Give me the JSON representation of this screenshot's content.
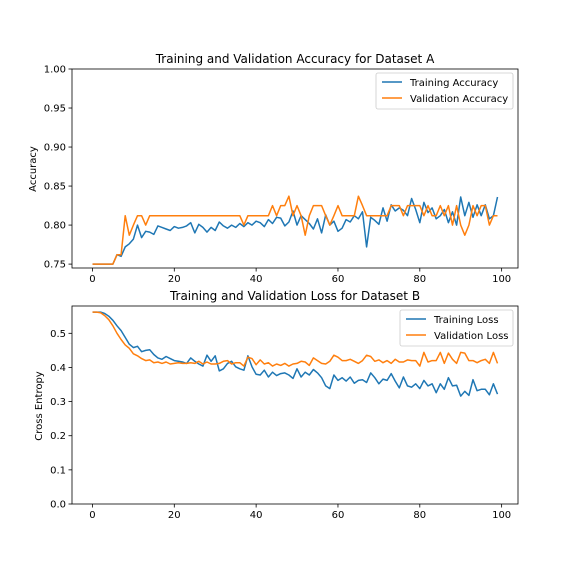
{
  "chart_data": [
    {
      "type": "line",
      "title": "Training and Validation Accuracy for Dataset A",
      "xlabel": "",
      "ylabel": "Accuracy",
      "xlim": [
        -5,
        104
      ],
      "ylim": [
        0.745,
        1.0
      ],
      "xticks": [
        0,
        20,
        40,
        60,
        80,
        100
      ],
      "xtick_labels": [
        "0",
        "20",
        "40",
        "60",
        "80",
        "100"
      ],
      "yticks": [
        0.75,
        0.8,
        0.85,
        0.9,
        0.95,
        1.0
      ],
      "ytick_labels": [
        "0.75",
        "0.80",
        "0.85",
        "0.90",
        "0.95",
        "1.00"
      ],
      "grid": false,
      "legend_position": "top-right",
      "series": [
        {
          "name": "Training Accuracy",
          "color": "#1f77b4",
          "x": [
            0,
            1,
            2,
            3,
            4,
            5,
            6,
            7,
            8,
            9,
            10,
            11,
            12,
            13,
            14,
            15,
            16,
            17,
            18,
            19,
            20,
            21,
            22,
            23,
            24,
            25,
            26,
            27,
            28,
            29,
            30,
            31,
            32,
            33,
            34,
            35,
            36,
            37,
            38,
            39,
            40,
            41,
            42,
            43,
            44,
            45,
            46,
            47,
            48,
            49,
            50,
            51,
            52,
            53,
            54,
            55,
            56,
            57,
            58,
            59,
            60,
            61,
            62,
            63,
            64,
            65,
            66,
            67,
            68,
            69,
            70,
            71,
            72,
            73,
            74,
            75,
            76,
            77,
            78,
            79,
            80,
            81,
            82,
            83,
            84,
            85,
            86,
            87,
            88,
            89,
            90,
            91,
            92,
            93,
            94,
            95,
            96,
            97,
            98,
            99
          ],
          "y": [
            0.75,
            0.75,
            0.75,
            0.75,
            0.75,
            0.75,
            0.762,
            0.76,
            0.772,
            0.776,
            0.782,
            0.8,
            0.784,
            0.792,
            0.791,
            0.788,
            0.799,
            0.797,
            0.795,
            0.793,
            0.798,
            0.796,
            0.797,
            0.799,
            0.803,
            0.79,
            0.801,
            0.797,
            0.791,
            0.797,
            0.793,
            0.804,
            0.799,
            0.796,
            0.8,
            0.797,
            0.802,
            0.798,
            0.803,
            0.8,
            0.805,
            0.803,
            0.798,
            0.807,
            0.802,
            0.81,
            0.809,
            0.799,
            0.804,
            0.818,
            0.8,
            0.812,
            0.807,
            0.802,
            0.795,
            0.808,
            0.79,
            0.813,
            0.8,
            0.805,
            0.792,
            0.796,
            0.807,
            0.804,
            0.812,
            0.808,
            0.817,
            0.772,
            0.81,
            0.806,
            0.801,
            0.822,
            0.805,
            0.826,
            0.818,
            0.822,
            0.819,
            0.812,
            0.834,
            0.82,
            0.803,
            0.829,
            0.816,
            0.822,
            0.808,
            0.812,
            0.82,
            0.803,
            0.817,
            0.8,
            0.836,
            0.812,
            0.829,
            0.81,
            0.826,
            0.812,
            0.826,
            0.808,
            0.812,
            0.836
          ]
        },
        {
          "name": "Validation Accuracy",
          "color": "#ff7f0e",
          "x": [
            0,
            1,
            2,
            3,
            4,
            5,
            6,
            7,
            8,
            9,
            10,
            11,
            12,
            13,
            14,
            15,
            16,
            17,
            18,
            19,
            20,
            21,
            22,
            23,
            24,
            25,
            26,
            27,
            28,
            29,
            30,
            31,
            32,
            33,
            34,
            35,
            36,
            37,
            38,
            39,
            40,
            41,
            42,
            43,
            44,
            45,
            46,
            47,
            48,
            49,
            50,
            51,
            52,
            53,
            54,
            55,
            56,
            57,
            58,
            59,
            60,
            61,
            62,
            63,
            64,
            65,
            66,
            67,
            68,
            69,
            70,
            71,
            72,
            73,
            74,
            75,
            76,
            77,
            78,
            79,
            80,
            81,
            82,
            83,
            84,
            85,
            86,
            87,
            88,
            89,
            90,
            91,
            92,
            93,
            94,
            95,
            96,
            97,
            98,
            99
          ],
          "y": [
            0.75,
            0.75,
            0.75,
            0.75,
            0.75,
            0.75,
            0.762,
            0.762,
            0.812,
            0.787,
            0.8,
            0.812,
            0.812,
            0.8,
            0.812,
            0.812,
            0.812,
            0.812,
            0.812,
            0.812,
            0.812,
            0.812,
            0.812,
            0.812,
            0.812,
            0.812,
            0.812,
            0.812,
            0.812,
            0.812,
            0.812,
            0.812,
            0.812,
            0.812,
            0.812,
            0.812,
            0.812,
            0.8,
            0.812,
            0.812,
            0.812,
            0.812,
            0.812,
            0.812,
            0.825,
            0.812,
            0.825,
            0.825,
            0.837,
            0.812,
            0.825,
            0.812,
            0.787,
            0.812,
            0.825,
            0.825,
            0.825,
            0.812,
            0.8,
            0.812,
            0.825,
            0.812,
            0.812,
            0.812,
            0.812,
            0.837,
            0.825,
            0.812,
            0.812,
            0.812,
            0.812,
            0.812,
            0.812,
            0.825,
            0.825,
            0.825,
            0.812,
            0.825,
            0.825,
            0.825,
            0.825,
            0.812,
            0.825,
            0.812,
            0.812,
            0.825,
            0.812,
            0.825,
            0.8,
            0.825,
            0.8,
            0.787,
            0.8,
            0.825,
            0.812,
            0.825,
            0.825,
            0.8,
            0.812,
            0.812
          ]
        }
      ]
    },
    {
      "type": "line",
      "title": "Training and Validation Loss for Dataset B",
      "xlabel": "",
      "ylabel": "Cross Entropy",
      "xlim": [
        -5,
        104
      ],
      "ylim": [
        0.0,
        0.58
      ],
      "xticks": [
        0,
        20,
        40,
        60,
        80,
        100
      ],
      "xtick_labels": [
        "0",
        "20",
        "40",
        "60",
        "80",
        "100"
      ],
      "yticks": [
        0.0,
        0.1,
        0.2,
        0.3,
        0.4,
        0.5
      ],
      "ytick_labels": [
        "0.0",
        "0.1",
        "0.2",
        "0.3",
        "0.4",
        "0.5"
      ],
      "grid": false,
      "legend_position": "top-right",
      "series": [
        {
          "name": "Training Loss",
          "color": "#1f77b4",
          "x": [
            0,
            1,
            2,
            3,
            4,
            5,
            6,
            7,
            8,
            9,
            10,
            11,
            12,
            13,
            14,
            15,
            16,
            17,
            18,
            19,
            20,
            21,
            22,
            23,
            24,
            25,
            26,
            27,
            28,
            29,
            30,
            31,
            32,
            33,
            34,
            35,
            36,
            37,
            38,
            39,
            40,
            41,
            42,
            43,
            44,
            45,
            46,
            47,
            48,
            49,
            50,
            51,
            52,
            53,
            54,
            55,
            56,
            57,
            58,
            59,
            60,
            61,
            62,
            63,
            64,
            65,
            66,
            67,
            68,
            69,
            70,
            71,
            72,
            73,
            74,
            75,
            76,
            77,
            78,
            79,
            80,
            81,
            82,
            83,
            84,
            85,
            86,
            87,
            88,
            89,
            90,
            91,
            92,
            93,
            94,
            95,
            96,
            97,
            98,
            99
          ],
          "y": [
            0.562,
            0.562,
            0.562,
            0.558,
            0.55,
            0.538,
            0.522,
            0.508,
            0.488,
            0.468,
            0.458,
            0.462,
            0.446,
            0.45,
            0.452,
            0.438,
            0.428,
            0.424,
            0.432,
            0.426,
            0.42,
            0.418,
            0.416,
            0.412,
            0.428,
            0.418,
            0.41,
            0.404,
            0.436,
            0.418,
            0.434,
            0.39,
            0.396,
            0.412,
            0.418,
            0.402,
            0.396,
            0.392,
            0.434,
            0.402,
            0.38,
            0.378,
            0.392,
            0.372,
            0.386,
            0.376,
            0.382,
            0.384,
            0.378,
            0.368,
            0.396,
            0.372,
            0.386,
            0.378,
            0.394,
            0.384,
            0.37,
            0.346,
            0.338,
            0.378,
            0.362,
            0.37,
            0.36,
            0.372,
            0.354,
            0.362,
            0.364,
            0.356,
            0.384,
            0.37,
            0.352,
            0.366,
            0.362,
            0.382,
            0.36,
            0.34,
            0.372,
            0.346,
            0.342,
            0.352,
            0.338,
            0.362,
            0.346,
            0.352,
            0.326,
            0.352,
            0.336,
            0.37,
            0.346,
            0.348,
            0.316,
            0.33,
            0.318,
            0.364,
            0.332,
            0.336,
            0.336,
            0.32,
            0.352,
            0.322
          ]
        },
        {
          "name": "Validation Loss",
          "color": "#ff7f0e",
          "x": [
            0,
            1,
            2,
            3,
            4,
            5,
            6,
            7,
            8,
            9,
            10,
            11,
            12,
            13,
            14,
            15,
            16,
            17,
            18,
            19,
            20,
            21,
            22,
            23,
            24,
            25,
            26,
            27,
            28,
            29,
            30,
            31,
            32,
            33,
            34,
            35,
            36,
            37,
            38,
            39,
            40,
            41,
            42,
            43,
            44,
            45,
            46,
            47,
            48,
            49,
            50,
            51,
            52,
            53,
            54,
            55,
            56,
            57,
            58,
            59,
            60,
            61,
            62,
            63,
            64,
            65,
            66,
            67,
            68,
            69,
            70,
            71,
            72,
            73,
            74,
            75,
            76,
            77,
            78,
            79,
            80,
            81,
            82,
            83,
            84,
            85,
            86,
            87,
            88,
            89,
            90,
            91,
            92,
            93,
            94,
            95,
            96,
            97,
            98,
            99
          ],
          "y": [
            0.562,
            0.562,
            0.56,
            0.552,
            0.54,
            0.522,
            0.5,
            0.482,
            0.466,
            0.456,
            0.44,
            0.434,
            0.426,
            0.42,
            0.422,
            0.414,
            0.416,
            0.412,
            0.416,
            0.41,
            0.412,
            0.414,
            0.412,
            0.412,
            0.414,
            0.412,
            0.418,
            0.41,
            0.416,
            0.41,
            0.41,
            0.412,
            0.418,
            0.42,
            0.41,
            0.414,
            0.414,
            0.404,
            0.43,
            0.426,
            0.408,
            0.422,
            0.41,
            0.414,
            0.404,
            0.41,
            0.406,
            0.412,
            0.404,
            0.41,
            0.412,
            0.418,
            0.416,
            0.406,
            0.428,
            0.42,
            0.412,
            0.41,
            0.418,
            0.436,
            0.43,
            0.42,
            0.42,
            0.424,
            0.418,
            0.412,
            0.42,
            0.436,
            0.432,
            0.418,
            0.422,
            0.414,
            0.42,
            0.412,
            0.424,
            0.416,
            0.416,
            0.422,
            0.42,
            0.42,
            0.404,
            0.444,
            0.416,
            0.42,
            0.42,
            0.444,
            0.412,
            0.442,
            0.424,
            0.412,
            0.444,
            0.442,
            0.42,
            0.42,
            0.414,
            0.42,
            0.424,
            0.412,
            0.444,
            0.412
          ]
        }
      ]
    }
  ]
}
